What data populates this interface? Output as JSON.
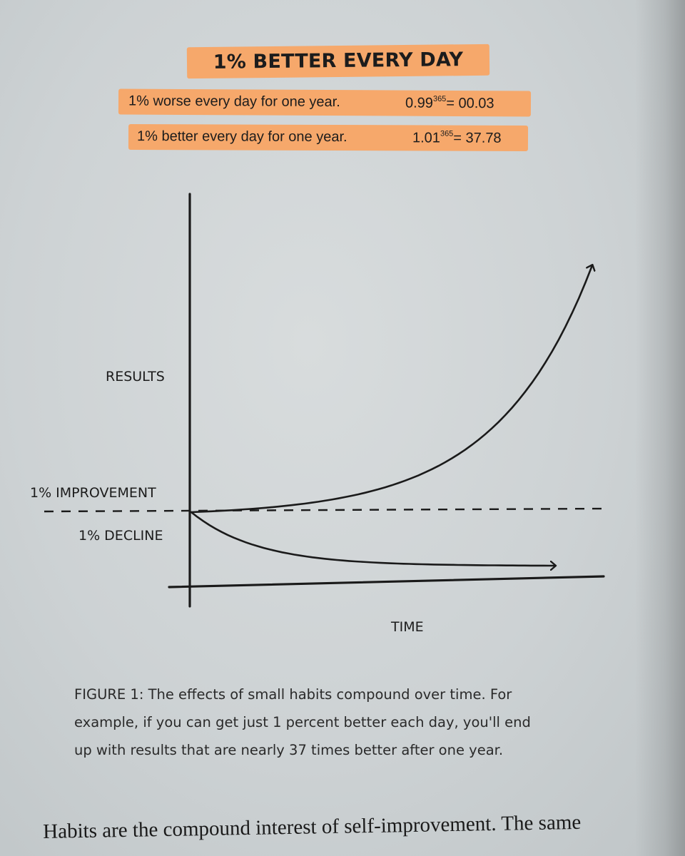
{
  "figure": {
    "title": "1% BETTER EVERY DAY",
    "equations": [
      {
        "label": "1% worse every day for one year.",
        "base": "0.99",
        "exponent": "365",
        "result": "= 00.03"
      },
      {
        "label": "1% better every day for one year.",
        "base": "1.01",
        "exponent": "365",
        "result": "= 37.78"
      }
    ]
  },
  "chart_data": {
    "type": "line",
    "title": "1% BETTER EVERY DAY",
    "xlabel": "TIME",
    "ylabel": "RESULTS",
    "baseline_label_above": "1% IMPROVEMENT",
    "baseline_label_below": "1% DECLINE",
    "series": [
      {
        "name": "1% IMPROVEMENT",
        "formula": "1.01^t",
        "color": "#1a1a1a"
      },
      {
        "name": "1% DECLINE",
        "formula": "0.99^t",
        "color": "#1a1a1a"
      }
    ],
    "baseline": {
      "value": 1,
      "style": "dashed"
    },
    "grid": false
  },
  "caption": {
    "lines": [
      "FIGURE 1: The effects of small habits compound over time. For",
      "example, if you can get just 1 percent better each day, you'll end",
      "up with results that are nearly 37 times better after one year."
    ]
  },
  "body": {
    "text": "Habits are the compound interest of self-improvement. The same"
  }
}
